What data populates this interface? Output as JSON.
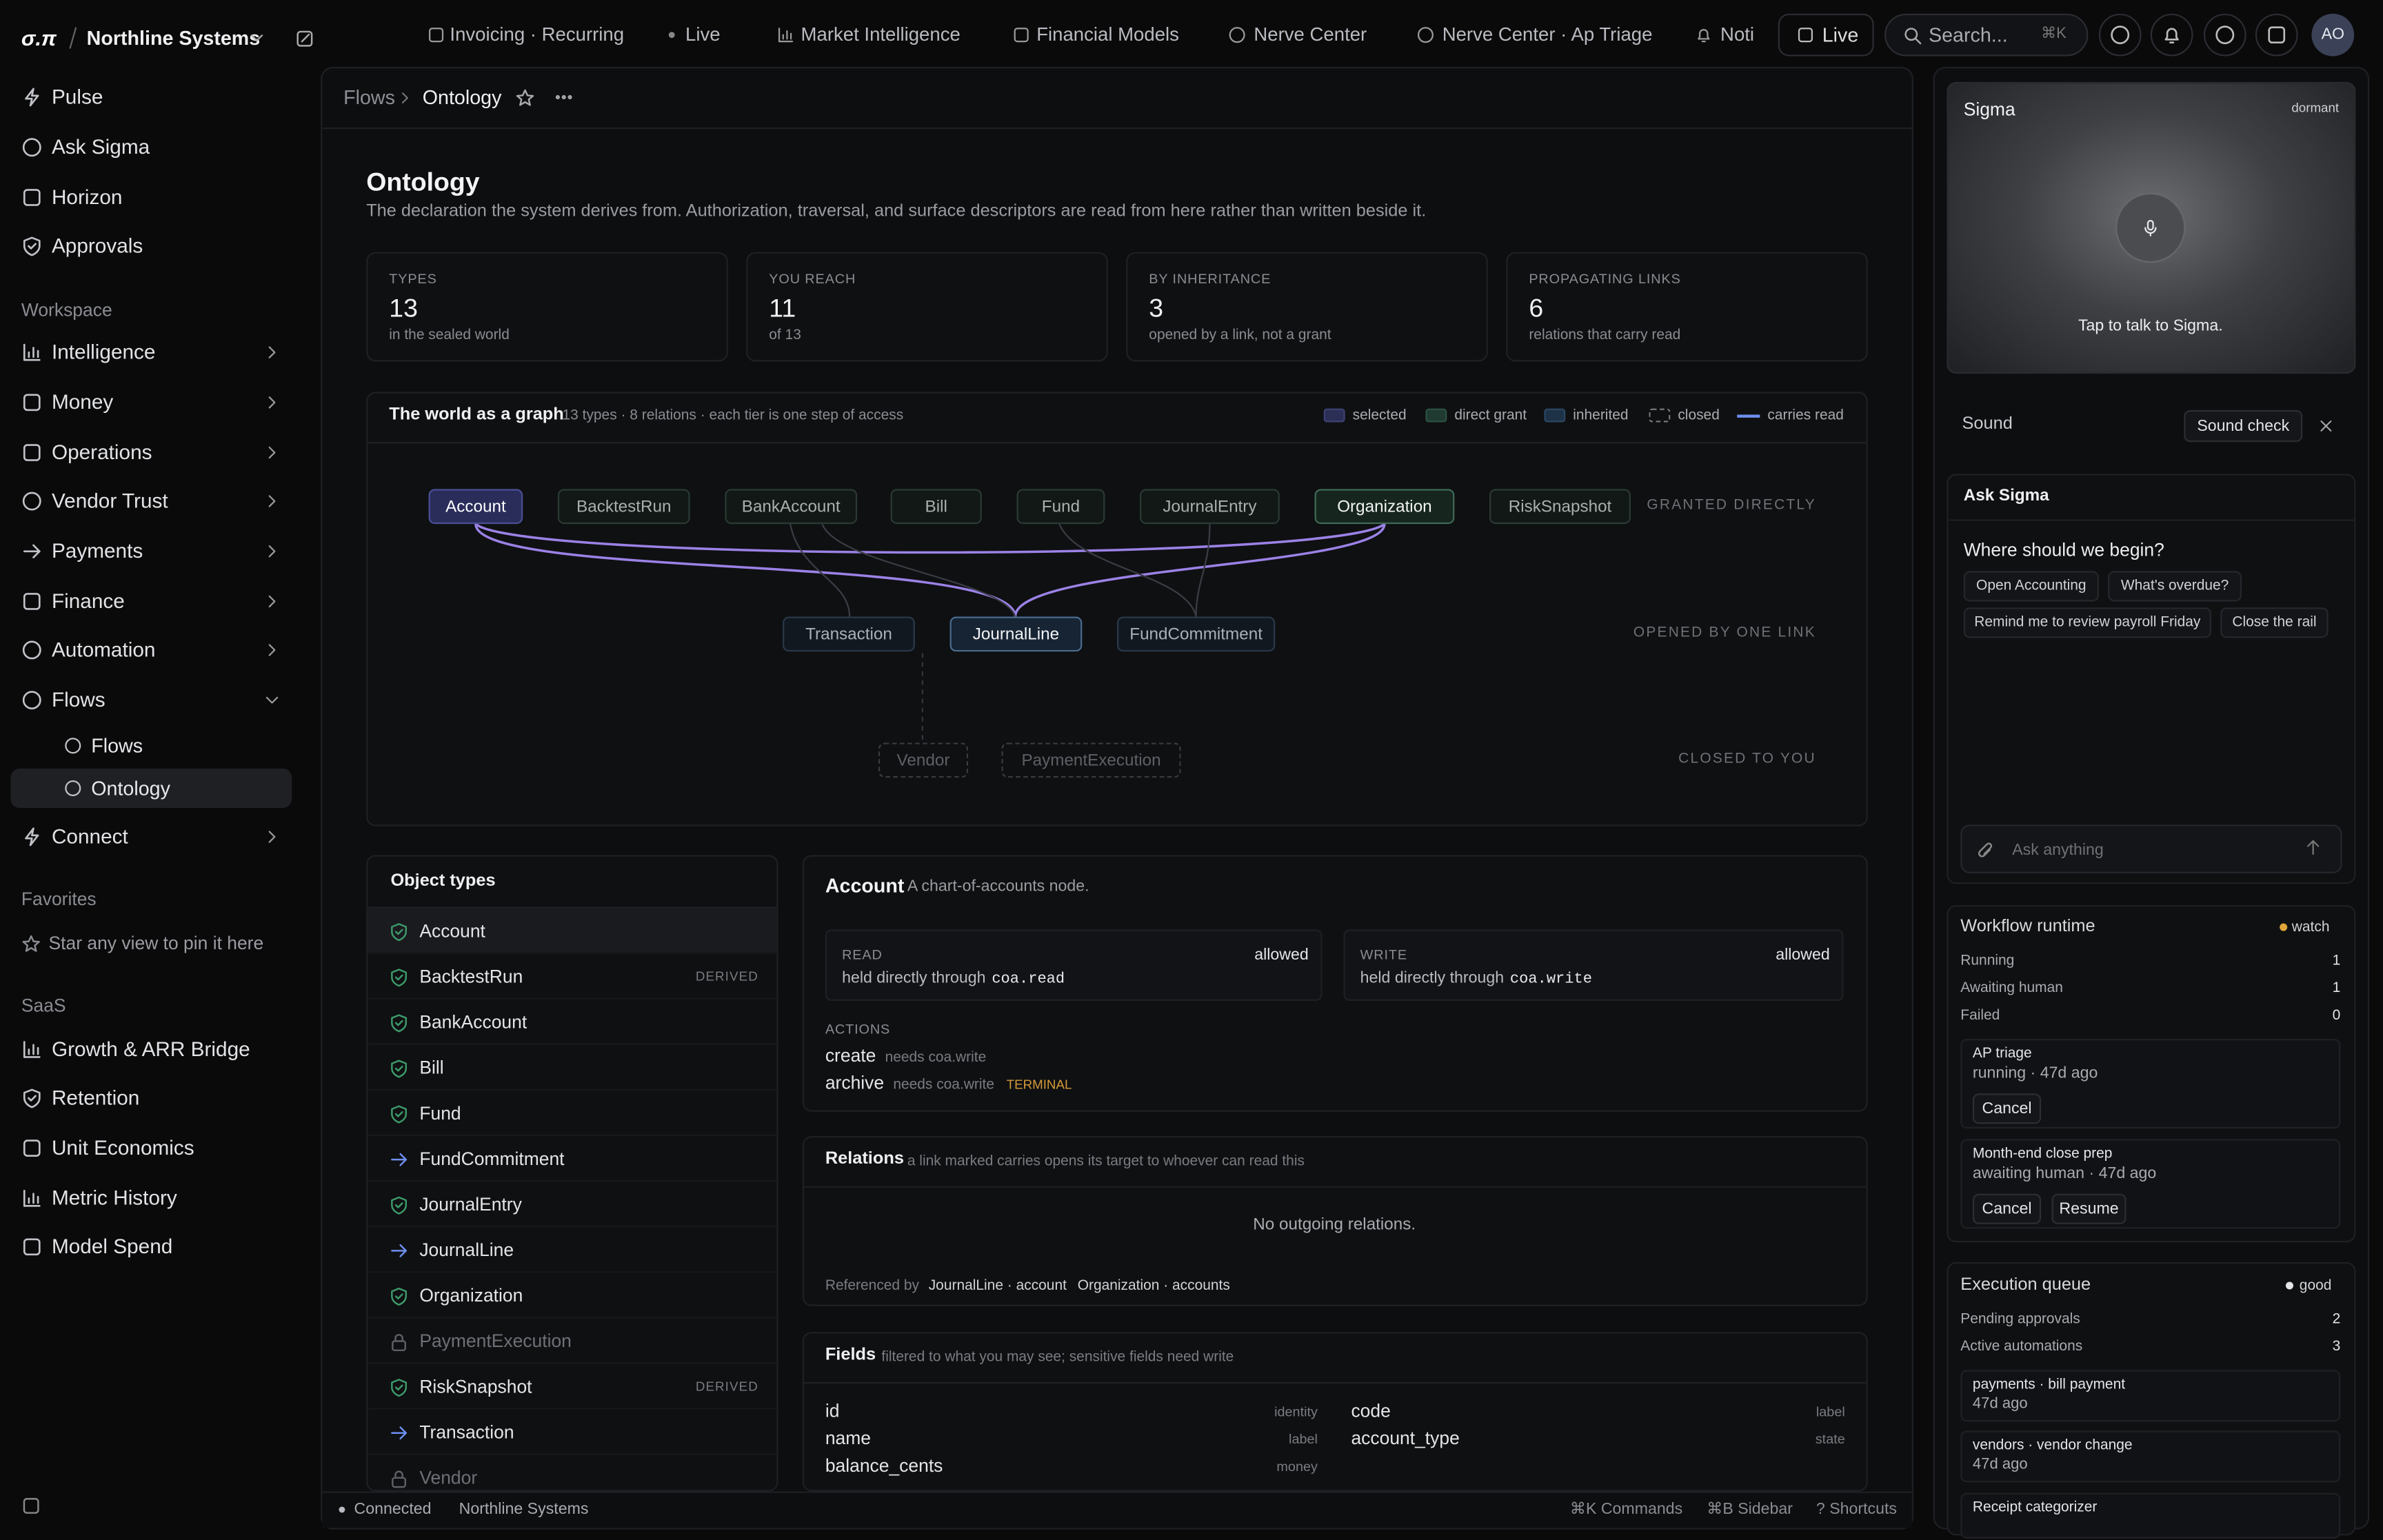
{
  "topbar": {
    "logo": "σ.π",
    "org": "Northline Systems",
    "tabs": [
      "Invoicing · Recurring",
      "Live",
      "Market Intelligence",
      "Financial Models",
      "Nerve Center",
      "Nerve Center · Ap Triage",
      "Noti"
    ],
    "live": "Live",
    "search": "Search...",
    "search_shortcut": "⌘K",
    "avatar": "AO"
  },
  "sidebar": {
    "top": [
      "Pulse",
      "Ask Sigma",
      "Horizon",
      "Approvals"
    ],
    "workspace": {
      "title": "Workspace",
      "items": [
        "Intelligence",
        "Money",
        "Operations",
        "Vendor Trust",
        "Payments",
        "Finance",
        "Automation",
        "Flows",
        "Connect"
      ],
      "flows_children": [
        "Flows",
        "Ontology"
      ]
    },
    "favorites": {
      "title": "Favorites",
      "hint": "Star any view to pin it here"
    },
    "saas": {
      "title": "SaaS",
      "items": [
        "Growth & ARR Bridge",
        "Retention",
        "Unit Economics",
        "Metric History",
        "Model Spend"
      ]
    }
  },
  "breadcrumb": [
    "Flows",
    "Ontology"
  ],
  "page": {
    "title": "Ontology",
    "description": "The declaration the system derives from. Authorization, traversal, and surface descriptors are read from here rather than written beside it."
  },
  "stats": [
    {
      "label": "TYPES",
      "value": 13,
      "note": "in the sealed world"
    },
    {
      "label": "YOU REACH",
      "value": 11,
      "note": "of 13"
    },
    {
      "label": "BY INHERITANCE",
      "value": 3,
      "note": "opened by a link, not a grant"
    },
    {
      "label": "PROPAGATING LINKS",
      "value": 6,
      "note": "relations that carry read"
    }
  ],
  "graph": {
    "title": "The world as a graph",
    "meta": "13 types · 8 relations · each tier is one step of access",
    "legend": [
      "selected",
      "direct grant",
      "inherited",
      "closed",
      "carries read"
    ],
    "tiers": [
      {
        "label": "GRANTED DIRECTLY",
        "nodes": [
          "Account",
          "BacktestRun",
          "BankAccount",
          "Bill",
          "Fund",
          "JournalEntry",
          "Organization",
          "RiskSnapshot"
        ]
      },
      {
        "label": "OPENED BY ONE LINK",
        "nodes": [
          "Transaction",
          "JournalLine",
          "FundCommitment"
        ]
      },
      {
        "label": "CLOSED TO YOU",
        "nodes": [
          "Vendor",
          "PaymentExecution"
        ]
      }
    ]
  },
  "object_types": {
    "title": "Object types",
    "items": [
      {
        "name": "Account"
      },
      {
        "name": "BacktestRun",
        "tag": "DERIVED"
      },
      {
        "name": "BankAccount"
      },
      {
        "name": "Bill"
      },
      {
        "name": "Fund"
      },
      {
        "name": "FundCommitment"
      },
      {
        "name": "JournalEntry"
      },
      {
        "name": "JournalLine"
      },
      {
        "name": "Organization"
      },
      {
        "name": "PaymentExecution"
      },
      {
        "name": "RiskSnapshot",
        "tag": "DERIVED"
      },
      {
        "name": "Transaction"
      },
      {
        "name": "Vendor"
      }
    ]
  },
  "detail": {
    "name": "Account",
    "description": "A chart-of-accounts node.",
    "access": [
      {
        "label": "READ",
        "status": "allowed",
        "text": "held directly through",
        "code": "coa.read"
      },
      {
        "label": "WRITE",
        "status": "allowed",
        "text": "held directly through",
        "code": "coa.write"
      }
    ],
    "actions_title": "ACTIONS",
    "actions": [
      {
        "name": "create",
        "need": "needs coa.write"
      },
      {
        "name": "archive",
        "need": "needs coa.write",
        "tag": "TERMINAL"
      }
    ]
  },
  "relations": {
    "title": "Relations",
    "note": "a link marked carries opens its target to whoever can read this",
    "empty": "No outgoing relations.",
    "referenced_label": "Referenced by",
    "referenced": [
      "JournalLine · account",
      "Organization · accounts"
    ]
  },
  "fields": {
    "title": "Fields",
    "note": "filtered to what you may see; sensitive fields need write",
    "items": [
      {
        "name": "id",
        "kind": "identity"
      },
      {
        "name": "code",
        "kind": "label"
      },
      {
        "name": "name",
        "kind": "label"
      },
      {
        "name": "account_type",
        "kind": "state"
      },
      {
        "name": "balance_cents",
        "kind": "money"
      }
    ]
  },
  "statusbar": {
    "left": [
      "Connected",
      "Northline Systems"
    ],
    "right": [
      "⌘K Commands",
      "⌘B Sidebar",
      "? Shortcuts"
    ]
  },
  "sigma": {
    "title": "Sigma",
    "state": "dormant",
    "prompt": "Tap to talk to Sigma.",
    "sound": "Sound",
    "sound_check": "Sound check"
  },
  "ask": {
    "title": "Ask Sigma",
    "question": "Where should we begin?",
    "chips": [
      "Open Accounting",
      "What's overdue?",
      "Remind me to review payroll Friday",
      "Close the rail"
    ],
    "placeholder": "Ask anything"
  },
  "workflow": {
    "title": "Workflow runtime",
    "status": "watch",
    "rows": [
      {
        "label": "Running",
        "value": 1
      },
      {
        "label": "Awaiting human",
        "value": 1
      },
      {
        "label": "Failed",
        "value": 0
      }
    ],
    "runs": [
      {
        "name": "AP triage",
        "status": "running · 47d ago",
        "buttons": [
          "Cancel"
        ]
      },
      {
        "name": "Month-end close prep",
        "status": "awaiting human · 47d ago",
        "buttons": [
          "Cancel",
          "Resume"
        ]
      }
    ]
  },
  "queue": {
    "title": "Execution queue",
    "status": "good",
    "rows": [
      {
        "label": "Pending approvals",
        "value": 2
      },
      {
        "label": "Active automations",
        "value": 3
      }
    ],
    "items": [
      {
        "name": "payments · bill payment",
        "time": "47d ago"
      },
      {
        "name": "vendors · vendor change",
        "time": "47d ago"
      },
      {
        "name": "Receipt categorizer"
      }
    ]
  }
}
